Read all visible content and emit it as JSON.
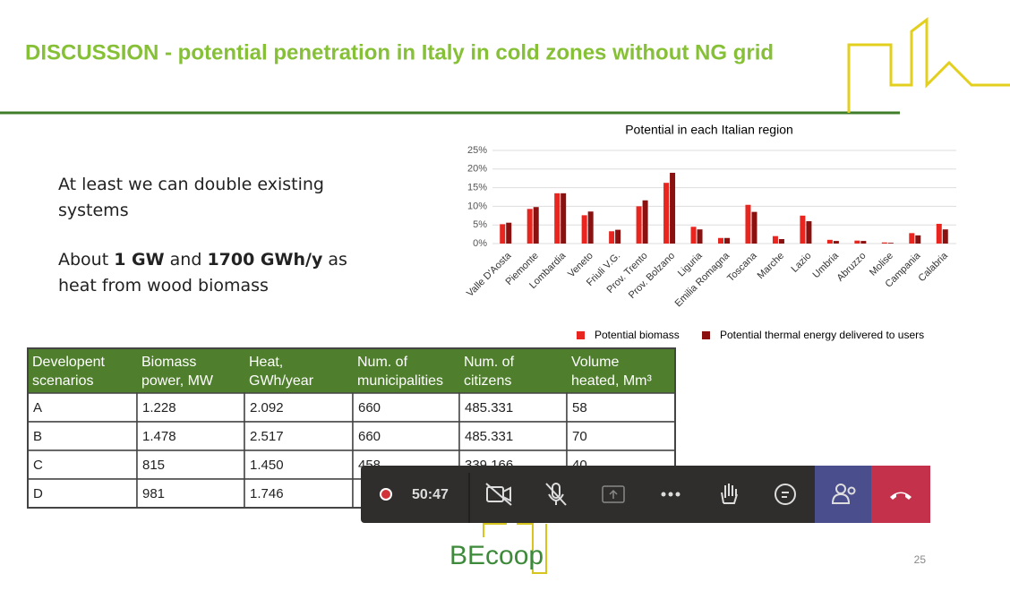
{
  "slide": {
    "title": "DISCUSSION - potential penetration in Italy in cold zones without NG grid",
    "text1": "At least we can double existing systems",
    "text2": [
      "About ",
      "1 GW",
      " and ",
      "1700 GWh/y",
      " as heat from wood biomass"
    ],
    "logo": "BEcoop",
    "page": "25"
  },
  "chart_data": {
    "type": "bar",
    "title": "Potential in each Italian region",
    "categories": [
      "Valle D'Aosta",
      "Piemonte",
      "Lombardia",
      "Veneto",
      "Friuli V.G.",
      "Prov. Trento",
      "Prov. Bolzano",
      "Liguria",
      "Emilia Romagna",
      "Toscana",
      "Marche",
      "Lazio",
      "Umbria",
      "Abruzzo",
      "Molise",
      "Campania",
      "Calabria"
    ],
    "series": [
      {
        "name": "Potential biomass",
        "color": "#e8261f",
        "values": [
          5.2,
          9.3,
          13.5,
          7.6,
          3.3,
          10,
          16.3,
          4.5,
          1.5,
          10.4,
          2,
          7.5,
          1,
          0.8,
          0.3,
          2.8,
          5.3
        ]
      },
      {
        "name": "Potential thermal energy delivered to users",
        "color": "#8b1010",
        "values": [
          5.6,
          9.8,
          13.5,
          8.6,
          3.7,
          11.6,
          19,
          3.8,
          1.5,
          8.5,
          1.2,
          6,
          0.7,
          0.7,
          0.2,
          2.2,
          3.8
        ]
      }
    ],
    "ylim": [
      0,
      25
    ],
    "yticks": [
      {
        "value": 0,
        "label": "0%"
      },
      {
        "value": 5,
        "label": "5%"
      },
      {
        "value": 10,
        "label": "10%"
      },
      {
        "value": 15,
        "label": "15%"
      },
      {
        "value": 20,
        "label": "20%"
      },
      {
        "value": 25,
        "label": "25%"
      }
    ],
    "grid": true,
    "legend": "bottom"
  },
  "table": {
    "header": [
      [
        "Developent",
        "scenarios"
      ],
      [
        "Biomass",
        "power, MW"
      ],
      [
        "Heat,",
        "GWh/year"
      ],
      [
        "Num. of",
        "municipalities"
      ],
      [
        "Num. of",
        "citizens"
      ],
      [
        "Volume",
        "heated, Mm³"
      ]
    ],
    "rows": [
      [
        "A",
        "1.228",
        "2.092",
        "660",
        "485.331",
        "58"
      ],
      [
        "B",
        "1.478",
        "2.517",
        "660",
        "485.331",
        "70"
      ],
      [
        "C",
        "815",
        "1.450",
        "458",
        "339.166",
        "40"
      ],
      [
        "D",
        "981",
        "1.746"
      ]
    ]
  },
  "toolbar": {
    "timer": "50:47"
  }
}
